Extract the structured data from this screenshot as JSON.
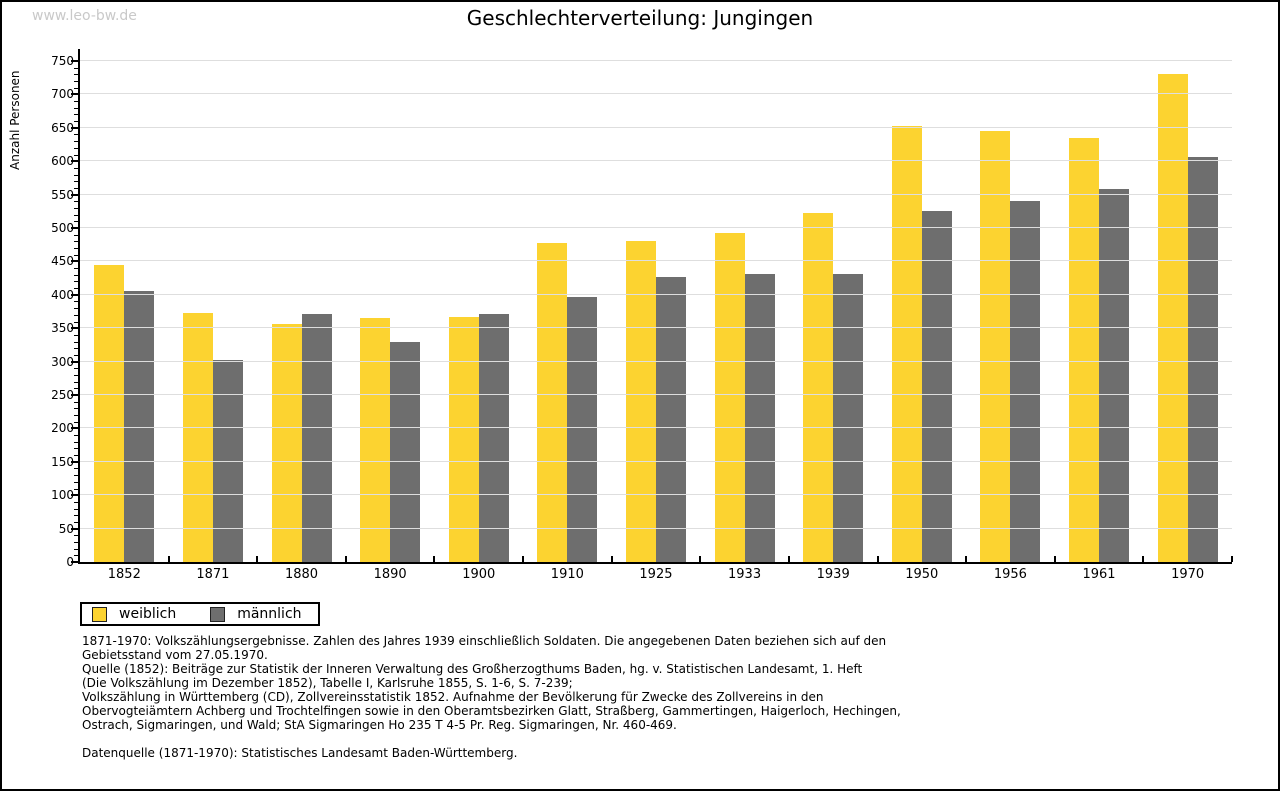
{
  "watermark": "www.leo-bw.de",
  "title": "Geschlechterverteilung: Jungingen",
  "chart_data": {
    "type": "bar",
    "title": "Geschlechterverteilung: Jungingen",
    "xlabel": "",
    "ylabel": "Anzahl Personen",
    "categories": [
      "1852",
      "1871",
      "1880",
      "1890",
      "1900",
      "1910",
      "1925",
      "1933",
      "1939",
      "1950",
      "1956",
      "1961",
      "1970"
    ],
    "series": [
      {
        "name": "weiblich",
        "color": "#FCD330",
        "values": [
          445,
          373,
          357,
          365,
          367,
          477,
          480,
          493,
          523,
          653,
          645,
          635,
          730
        ]
      },
      {
        "name": "männlich",
        "color": "#6E6E6E",
        "values": [
          406,
          303,
          371,
          330,
          371,
          397,
          427,
          431,
          431,
          526,
          540,
          559,
          606
        ]
      }
    ],
    "ylim": [
      0,
      750
    ],
    "y_major_step": 50,
    "y_minor_step": 10,
    "grid": "horizontal-major",
    "gridline_color": "#DEDEDE",
    "legend_position": "below-left"
  },
  "notes": [
    "1871-1970: Volkszählungsergebnisse. Zahlen des Jahres 1939 einschließlich Soldaten. Die angegebenen Daten beziehen sich auf den",
    "Gebietsstand vom 27.05.1970.",
    "Quelle (1852): Beiträge zur Statistik der Inneren Verwaltung des Großherzogthums Baden, hg. v. Statistischen Landesamt, 1. Heft",
    "(Die Volkszählung im Dezember 1852), Tabelle I, Karlsruhe 1855, S. 1-6, S. 7-239;",
    "Volkszählung in Württemberg (CD), Zollvereinsstatistik 1852. Aufnahme der Bevölkerung für Zwecke des Zollvereins in den",
    "Obervogteiämtern Achberg und Trochtelfingen sowie in den Oberamtsbezirken Glatt, Straßberg, Gammertingen, Haigerloch, Hechingen,",
    "Ostrach, Sigmaringen, und Wald; StA Sigmaringen Ho 235 T 4-5 Pr. Reg. Sigmaringen, Nr. 460-469."
  ],
  "datasource": "Datenquelle (1871-1970): Statistisches Landesamt Baden-Württemberg."
}
